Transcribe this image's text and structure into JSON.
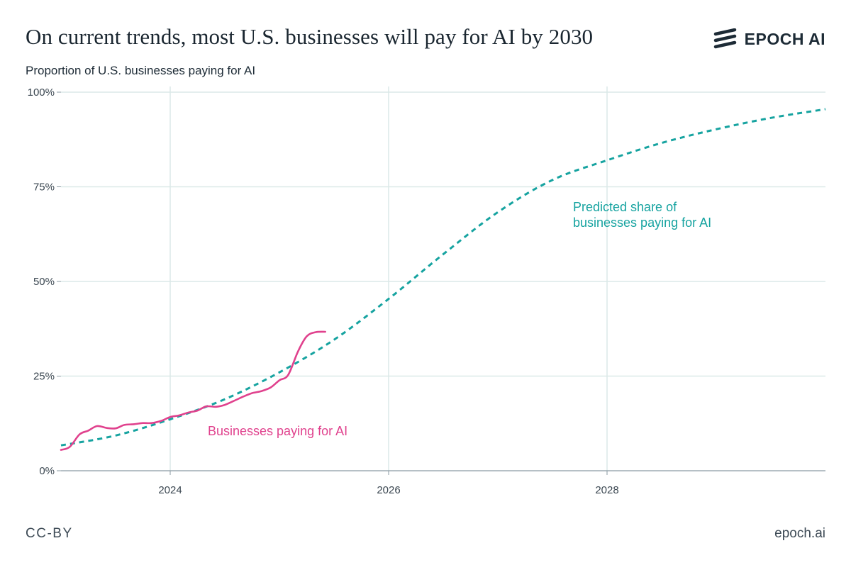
{
  "header": {
    "title": "On current trends, most U.S. businesses will pay for AI by 2030",
    "subtitle": "Proportion of U.S. businesses paying for AI",
    "logo_text": "EPOCH AI",
    "logo_icon": "epoch-stripes-icon"
  },
  "footer": {
    "license": "CC-BY",
    "site": "epoch.ai"
  },
  "colors": {
    "observed": "#e0418d",
    "predicted": "#16a3a0",
    "grid": "#dbe9e8",
    "axis": "#8a9aa3"
  },
  "chart_data": {
    "type": "line",
    "title": "On current trends, most U.S. businesses will pay for AI by 2030",
    "ylabel": "Proportion of U.S. businesses paying for AI",
    "xlim": [
      2023.0,
      2030.0
    ],
    "ylim": [
      0,
      100
    ],
    "x_ticks": [
      {
        "value": 2024,
        "label": "2024"
      },
      {
        "value": 2026,
        "label": "2026"
      },
      {
        "value": 2028,
        "label": "2028"
      }
    ],
    "y_ticks": [
      {
        "value": 0,
        "label": "0%"
      },
      {
        "value": 25,
        "label": "25%"
      },
      {
        "value": 50,
        "label": "50%"
      },
      {
        "value": 75,
        "label": "75%"
      },
      {
        "value": 100,
        "label": "100%"
      }
    ],
    "series": [
      {
        "name": "Businesses paying for AI",
        "style": "solid",
        "label": "Businesses paying for AI",
        "points": [
          [
            2023.0,
            5.5
          ],
          [
            2023.08,
            6.3
          ],
          [
            2023.17,
            9.6
          ],
          [
            2023.25,
            10.6
          ],
          [
            2023.33,
            11.8
          ],
          [
            2023.42,
            11.3
          ],
          [
            2023.5,
            11.2
          ],
          [
            2023.58,
            12.1
          ],
          [
            2023.67,
            12.3
          ],
          [
            2023.75,
            12.6
          ],
          [
            2023.83,
            12.6
          ],
          [
            2023.92,
            13.2
          ],
          [
            2024.0,
            14.2
          ],
          [
            2024.08,
            14.6
          ],
          [
            2024.17,
            15.4
          ],
          [
            2024.25,
            15.9
          ],
          [
            2024.33,
            17.0
          ],
          [
            2024.42,
            16.9
          ],
          [
            2024.5,
            17.4
          ],
          [
            2024.58,
            18.4
          ],
          [
            2024.67,
            19.6
          ],
          [
            2024.75,
            20.5
          ],
          [
            2024.83,
            21.0
          ],
          [
            2024.92,
            22.0
          ],
          [
            2025.0,
            23.9
          ],
          [
            2025.08,
            25.3
          ],
          [
            2025.17,
            31.5
          ],
          [
            2025.25,
            35.5
          ],
          [
            2025.33,
            36.6
          ],
          [
            2025.42,
            36.7
          ]
        ]
      },
      {
        "name": "Predicted share of businesses paying for AI",
        "style": "dashed",
        "label": "Predicted share of businesses paying for AI",
        "label_lines": [
          "Predicted share of",
          "businesses paying for AI"
        ],
        "points": [
          [
            2023.0,
            6.7
          ],
          [
            2023.5,
            9.3
          ],
          [
            2024.0,
            13.6
          ],
          [
            2024.5,
            18.9
          ],
          [
            2025.0,
            26.0
          ],
          [
            2025.5,
            34.6
          ],
          [
            2026.0,
            45.4
          ],
          [
            2026.5,
            57.2
          ],
          [
            2027.0,
            68.3
          ],
          [
            2027.5,
            76.8
          ],
          [
            2028.0,
            82.0
          ],
          [
            2028.5,
            86.6
          ],
          [
            2029.0,
            90.2
          ],
          [
            2029.5,
            93.2
          ],
          [
            2030.0,
            95.5
          ]
        ]
      }
    ]
  }
}
